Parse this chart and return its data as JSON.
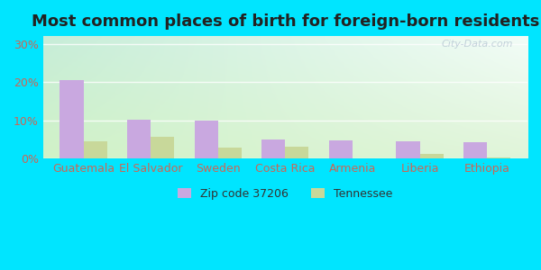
{
  "title": "Most common places of birth for foreign-born residents",
  "categories": [
    "Guatemala",
    "El Salvador",
    "Sweden",
    "Costa Rica",
    "Armenia",
    "Liberia",
    "Ethiopia"
  ],
  "zip_values": [
    20.5,
    10.2,
    10.0,
    5.0,
    4.8,
    4.6,
    4.3
  ],
  "tn_values": [
    4.5,
    5.8,
    2.8,
    3.0,
    0.0,
    1.2,
    0.3
  ],
  "zip_color": "#c9a8e0",
  "tn_color": "#c8d89a",
  "ylim": [
    0,
    32
  ],
  "yticks": [
    0,
    10,
    20,
    30
  ],
  "ytick_labels": [
    "0%",
    "10%",
    "20%",
    "30%"
  ],
  "legend_zip": "Zip code 37206",
  "legend_tn": "Tennessee",
  "bg_outer": "#00e5ff",
  "watermark": "City-Data.com",
  "bar_width": 0.35,
  "title_fontsize": 13,
  "tick_fontsize": 9,
  "grid_color": "#b0d0b0",
  "label_color": "#cc6655"
}
